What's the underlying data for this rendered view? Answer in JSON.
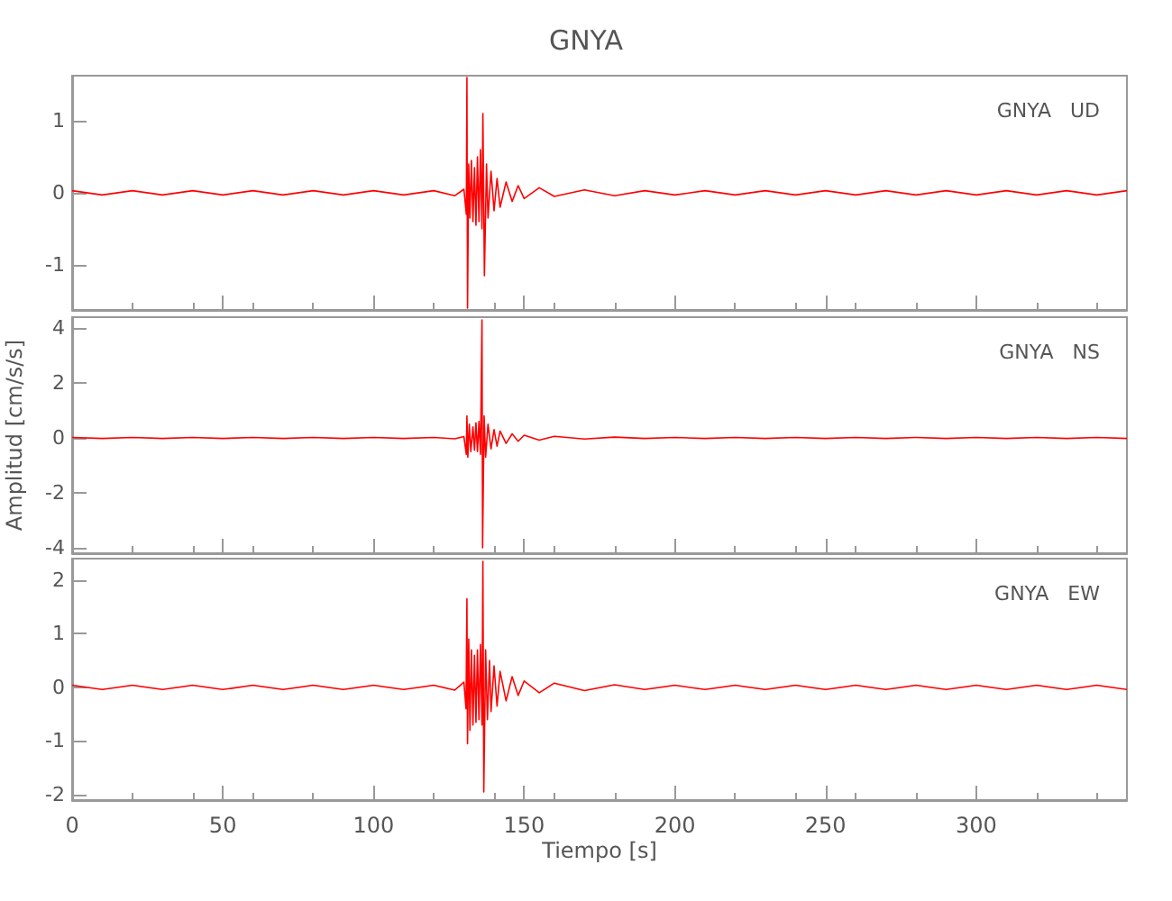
{
  "chart_data": [
    {
      "type": "line",
      "title": "GNYA",
      "annotations": [
        "GNYA   UD"
      ],
      "xlim": [
        0,
        350
      ],
      "xticks": [
        0,
        50,
        100,
        150,
        200,
        250,
        300
      ],
      "ylim": [
        -1.625,
        1.625
      ],
      "yticks": [
        -1,
        0,
        1
      ],
      "tick_labels": "y",
      "grid": false,
      "marker": "none",
      "line_style": "solid",
      "series": [
        {
          "color": "#ff0000",
          "x": [
            0,
            10,
            20,
            30,
            40,
            50,
            60,
            70,
            80,
            90,
            100,
            110,
            120,
            127,
            130,
            130.8,
            131,
            131.2,
            131.6,
            132,
            132.5,
            133,
            133.5,
            134,
            134.5,
            135,
            135.5,
            136,
            136.3,
            136.8,
            137.5,
            138,
            139,
            140,
            141,
            142,
            144,
            146,
            148,
            150,
            155,
            160,
            170,
            180,
            190,
            200,
            210,
            220,
            230,
            240,
            250,
            260,
            270,
            280,
            290,
            300,
            310,
            320,
            330,
            340,
            350
          ],
          "values": [
            0.03,
            -0.03,
            0.03,
            -0.03,
            0.03,
            -0.03,
            0.03,
            -0.03,
            0.03,
            -0.03,
            0.03,
            -0.03,
            0.03,
            -0.04,
            0.05,
            -0.3,
            1.6,
            -1.6,
            0.4,
            -0.35,
            0.45,
            -0.4,
            0.35,
            -0.45,
            0.5,
            -0.4,
            0.6,
            -0.5,
            1.1,
            -1.15,
            0.4,
            -0.35,
            0.3,
            -0.25,
            0.2,
            -0.2,
            0.15,
            -0.12,
            0.1,
            -0.08,
            0.07,
            -0.05,
            0.04,
            -0.04,
            0.03,
            -0.03,
            0.03,
            -0.03,
            0.03,
            -0.03,
            0.03,
            -0.03,
            0.03,
            -0.03,
            0.03,
            -0.03,
            0.03,
            -0.03,
            0.03,
            -0.03,
            0.03
          ]
        }
      ]
    },
    {
      "type": "line",
      "ylabel": "Amplitud [cm/s/s]",
      "annotations": [
        "GNYA   NS"
      ],
      "xlim": [
        0,
        350
      ],
      "xticks": [
        0,
        50,
        100,
        150,
        200,
        250,
        300
      ],
      "ylim": [
        -4.2,
        4.4
      ],
      "yticks": [
        -4,
        -2,
        0,
        2,
        4
      ],
      "tick_labels": "y",
      "grid": false,
      "marker": "none",
      "line_style": "solid",
      "series": [
        {
          "color": "#ff0000",
          "x": [
            0,
            10,
            20,
            30,
            40,
            50,
            60,
            70,
            80,
            90,
            100,
            110,
            120,
            127,
            130,
            130.8,
            131,
            131.3,
            131.8,
            132.3,
            133,
            133.5,
            134,
            134.5,
            135,
            135.5,
            136,
            136.2,
            136.7,
            137.2,
            138,
            139,
            140,
            141,
            142,
            144,
            146,
            148,
            150,
            155,
            160,
            170,
            180,
            190,
            200,
            210,
            220,
            230,
            240,
            250,
            260,
            270,
            280,
            290,
            300,
            310,
            320,
            330,
            340,
            350
          ],
          "values": [
            0.02,
            -0.02,
            0.02,
            -0.02,
            0.02,
            -0.02,
            0.02,
            -0.02,
            0.02,
            -0.02,
            0.02,
            -0.02,
            0.02,
            -0.03,
            0.05,
            -0.6,
            0.8,
            -0.7,
            0.5,
            -0.5,
            0.4,
            -0.45,
            0.55,
            -0.5,
            0.6,
            -0.6,
            4.3,
            -4.0,
            0.8,
            -0.7,
            0.5,
            -0.4,
            0.3,
            -0.3,
            0.25,
            -0.2,
            0.15,
            -0.12,
            0.1,
            -0.08,
            0.06,
            -0.04,
            0.03,
            -0.02,
            0.02,
            -0.02,
            0.02,
            -0.02,
            0.02,
            -0.02,
            0.02,
            -0.02,
            0.02,
            -0.02,
            0.02,
            -0.02,
            0.02,
            -0.02,
            0.02,
            -0.02
          ]
        }
      ]
    },
    {
      "type": "line",
      "xlabel": "Tiempo [s]",
      "annotations": [
        "GNYA   EW"
      ],
      "xlim": [
        0,
        350
      ],
      "xticks": [
        0,
        50,
        100,
        150,
        200,
        250,
        300
      ],
      "ylim": [
        -2.1,
        2.4
      ],
      "yticks": [
        -2,
        -1,
        0,
        1,
        2
      ],
      "grid": false,
      "marker": "none",
      "line_style": "solid",
      "series": [
        {
          "color": "#ff0000",
          "x": [
            0,
            10,
            20,
            30,
            40,
            50,
            60,
            70,
            80,
            90,
            100,
            110,
            120,
            127,
            130,
            130.7,
            131,
            131.2,
            131.6,
            132,
            132.5,
            133,
            133.5,
            134,
            134.5,
            135,
            135.5,
            136,
            136.3,
            136.6,
            137.2,
            137.8,
            138.5,
            139,
            140,
            141,
            142,
            144,
            146,
            148,
            150,
            155,
            160,
            170,
            180,
            190,
            200,
            210,
            220,
            230,
            240,
            250,
            260,
            270,
            280,
            290,
            300,
            310,
            320,
            330,
            340,
            350
          ],
          "values": [
            0.04,
            -0.04,
            0.04,
            -0.04,
            0.04,
            -0.04,
            0.04,
            -0.04,
            0.04,
            -0.04,
            0.04,
            -0.04,
            0.04,
            -0.05,
            0.1,
            -0.4,
            1.65,
            -1.05,
            0.9,
            -0.8,
            0.7,
            -0.7,
            0.6,
            -0.65,
            0.7,
            -0.6,
            0.8,
            -0.7,
            2.35,
            -1.95,
            0.7,
            -0.6,
            0.5,
            -0.45,
            0.4,
            -0.35,
            0.3,
            -0.25,
            0.2,
            -0.15,
            0.12,
            -0.1,
            0.08,
            -0.06,
            0.05,
            -0.04,
            0.04,
            -0.04,
            0.04,
            -0.04,
            0.04,
            -0.04,
            0.04,
            -0.04,
            0.04,
            -0.04,
            0.04,
            -0.04,
            0.04,
            -0.04,
            0.04,
            -0.04
          ]
        }
      ]
    }
  ]
}
